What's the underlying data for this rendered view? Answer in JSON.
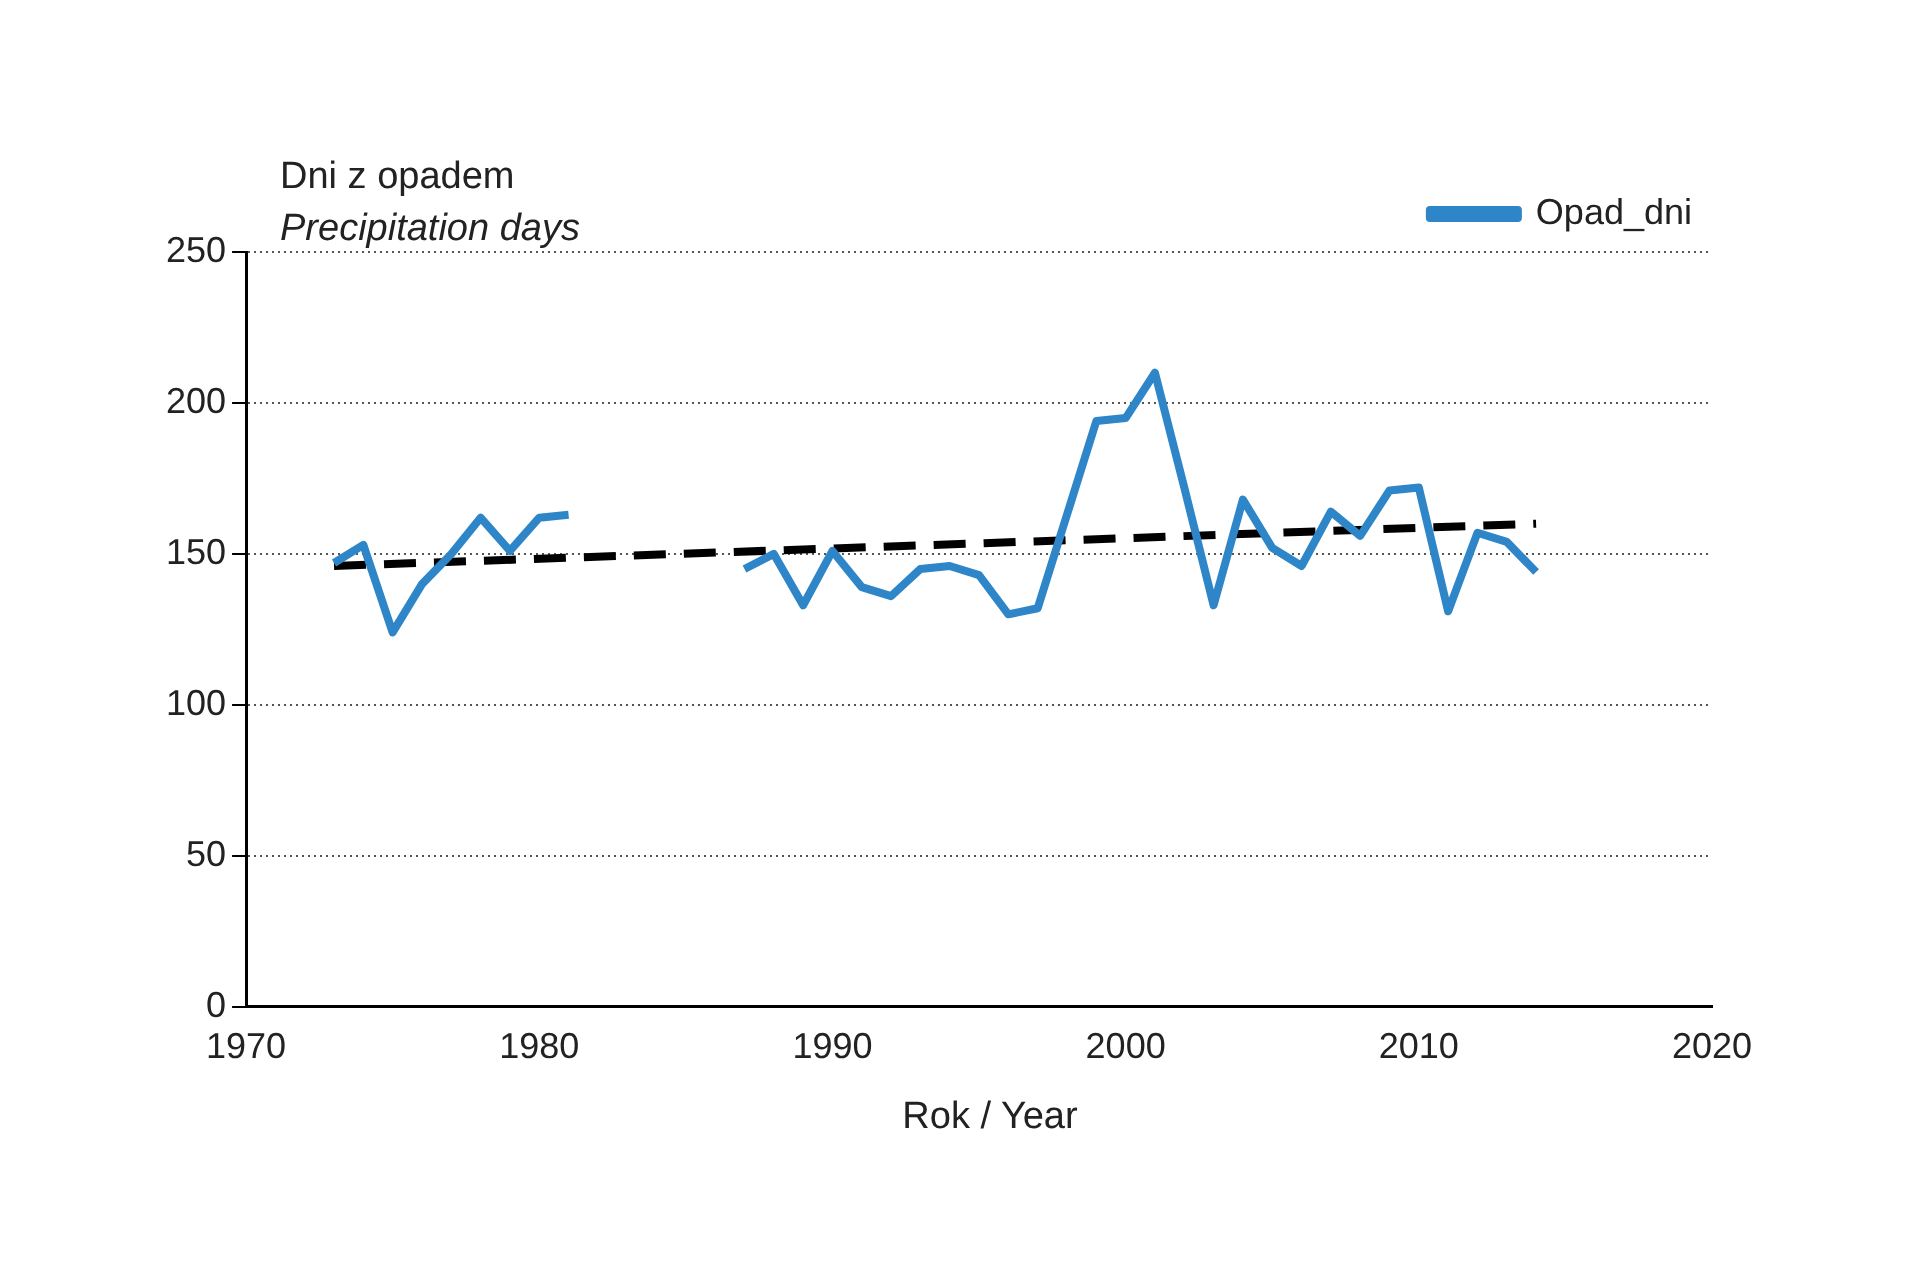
{
  "chart_data": {
    "type": "line",
    "title": "Dni z opadem",
    "subtitle": "Precipitation days",
    "xlabel": "Rok / Year",
    "x": [
      1973,
      1974,
      1975,
      1976,
      1977,
      1978,
      1979,
      1980,
      1981,
      1982,
      1983,
      1984,
      1985,
      1986,
      1987,
      1988,
      1989,
      1990,
      1991,
      1992,
      1993,
      1994,
      1995,
      1996,
      1997,
      1998,
      1999,
      2000,
      2001,
      2002,
      2003,
      2004,
      2005,
      2006,
      2007,
      2008,
      2009,
      2010,
      2011,
      2012,
      2013,
      2014
    ],
    "series": [
      {
        "name": "Opad_dni",
        "color": "#2e86c8",
        "values": [
          147,
          153,
          124,
          140,
          150,
          162,
          151,
          162,
          163,
          null,
          null,
          null,
          null,
          null,
          145,
          150,
          133,
          151,
          139,
          136,
          145,
          146,
          143,
          130,
          132,
          163,
          194,
          195,
          210,
          172,
          133,
          168,
          152,
          146,
          164,
          156,
          171,
          172,
          131,
          157,
          154,
          144
        ]
      },
      {
        "type": "line",
        "color": "#000000",
        "line_style": "dashed",
        "x": [
          1973,
          2014
        ],
        "values": [
          146,
          160
        ]
      }
    ],
    "xlim": [
      1970,
      2020
    ],
    "xticks": [
      1970,
      1980,
      1990,
      2000,
      2010,
      2020
    ],
    "ylim": [
      0,
      250
    ],
    "yticks": [
      0,
      50,
      100,
      150,
      200,
      250
    ],
    "grid": "y",
    "legend": "top right",
    "marker": "none"
  }
}
